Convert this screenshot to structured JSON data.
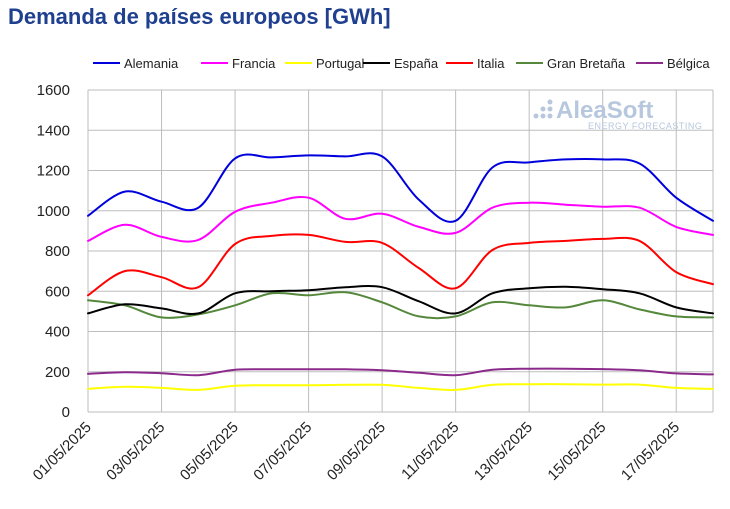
{
  "chart_data": {
    "type": "line",
    "title": "Demanda de países europeos [GWh]",
    "ylim": [
      0,
      1600
    ],
    "yticks": [
      0,
      200,
      400,
      600,
      800,
      1000,
      1200,
      1400,
      1600
    ],
    "x": [
      "01/05/2025",
      "02/05/2025",
      "03/05/2025",
      "04/05/2025",
      "05/05/2025",
      "06/05/2025",
      "07/05/2025",
      "08/05/2025",
      "09/05/2025",
      "10/05/2025",
      "11/05/2025",
      "12/05/2025",
      "13/05/2025",
      "14/05/2025",
      "15/05/2025",
      "16/05/2025",
      "17/05/2025",
      "18/05/2025"
    ],
    "xtick_labels": [
      "01/05/2025",
      "03/05/2025",
      "05/05/2025",
      "07/05/2025",
      "09/05/2025",
      "11/05/2025",
      "13/05/2025",
      "15/05/2025",
      "17/05/2025"
    ],
    "grid": true,
    "legend_position": "top",
    "series": [
      {
        "name": "Alemania",
        "color": "#0000dd",
        "values": [
          975,
          1095,
          1045,
          1015,
          1260,
          1265,
          1275,
          1270,
          1270,
          1055,
          950,
          1215,
          1240,
          1255,
          1255,
          1235,
          1065,
          950
        ]
      },
      {
        "name": "Francia",
        "color": "#ff00ff",
        "values": [
          850,
          930,
          870,
          855,
          995,
          1040,
          1065,
          960,
          985,
          920,
          890,
          1015,
          1040,
          1030,
          1020,
          1015,
          920,
          880
        ]
      },
      {
        "name": "Portugal",
        "color": "#ffff00",
        "values": [
          115,
          125,
          120,
          110,
          130,
          133,
          133,
          135,
          135,
          120,
          110,
          135,
          138,
          138,
          136,
          136,
          120,
          115
        ]
      },
      {
        "name": "España",
        "color": "#000000",
        "values": [
          490,
          535,
          515,
          490,
          590,
          600,
          605,
          620,
          620,
          550,
          490,
          590,
          615,
          622,
          610,
          590,
          520,
          490
        ]
      },
      {
        "name": "Italia",
        "color": "#ff0000",
        "values": [
          580,
          700,
          670,
          620,
          835,
          875,
          880,
          845,
          840,
          715,
          615,
          805,
          840,
          850,
          860,
          850,
          695,
          635
        ]
      },
      {
        "name": "Gran Bretaña",
        "color": "#55883b",
        "values": [
          555,
          530,
          470,
          485,
          530,
          590,
          580,
          595,
          545,
          475,
          475,
          545,
          530,
          520,
          555,
          510,
          475,
          470
        ]
      },
      {
        "name": "Bélgica",
        "color": "#8b2a8b",
        "values": [
          190,
          198,
          193,
          183,
          210,
          212,
          212,
          212,
          207,
          195,
          183,
          210,
          215,
          215,
          213,
          207,
          192,
          187
        ]
      }
    ]
  },
  "watermark": {
    "brand": "AleaSoft",
    "tagline": "ENERGY FORECASTING"
  }
}
